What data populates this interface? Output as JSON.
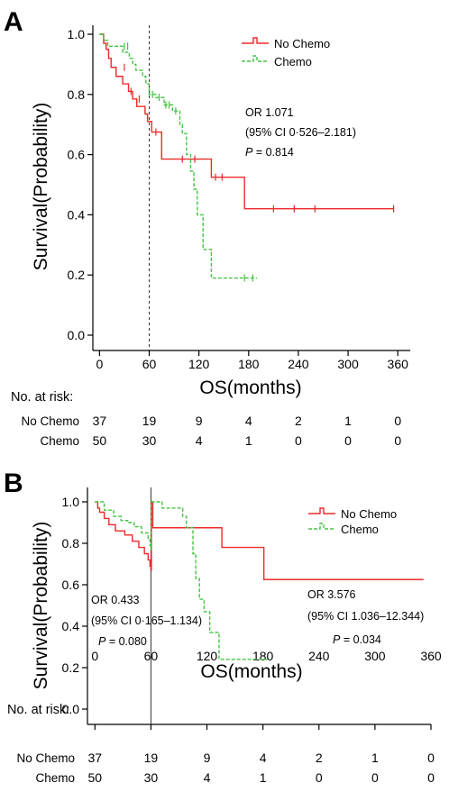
{
  "chart_data": [
    {
      "panel": "A",
      "type": "line",
      "ylabel": "Survival(Probability)",
      "xlabel": "OS(months)",
      "xticks": [
        0,
        60,
        120,
        180,
        240,
        300,
        360
      ],
      "yticks": [
        "0.0",
        "0.2",
        "0.4",
        "0.6",
        "0.8",
        "1.0"
      ],
      "xlim": [
        -8,
        375
      ],
      "ylim": [
        0,
        1
      ],
      "legend_position": "top-right",
      "reference_line_x": 60,
      "series": [
        {
          "name": "No Chemo",
          "color": "#ee2a2a",
          "dash": "solid",
          "steps": [
            [
              0,
              1.0
            ],
            [
              5,
              0.97
            ],
            [
              8,
              0.95
            ],
            [
              11,
              0.92
            ],
            [
              14,
              0.89
            ],
            [
              20,
              0.86
            ],
            [
              28,
              0.835
            ],
            [
              35,
              0.81
            ],
            [
              40,
              0.785
            ],
            [
              45,
              0.76
            ],
            [
              55,
              0.735
            ],
            [
              58,
              0.71
            ],
            [
              63,
              0.675
            ],
            [
              75,
              0.585
            ],
            [
              135,
              0.525
            ],
            [
              175,
              0.42
            ],
            [
              355,
              0.42
            ]
          ],
          "censored": [
            [
              30,
              0.89
            ],
            [
              38,
              0.81
            ],
            [
              48,
              0.785
            ],
            [
              68,
              0.675
            ],
            [
              100,
              0.585
            ],
            [
              115,
              0.585
            ],
            [
              140,
              0.525
            ],
            [
              148,
              0.525
            ],
            [
              210,
              0.42
            ],
            [
              235,
              0.42
            ],
            [
              260,
              0.42
            ],
            [
              355,
              0.42
            ]
          ]
        },
        {
          "name": "Chemo",
          "color": "#44c444",
          "dash": "dashed",
          "steps": [
            [
              0,
              1.0
            ],
            [
              5,
              0.98
            ],
            [
              10,
              0.96
            ],
            [
              20,
              0.96
            ],
            [
              28,
              0.94
            ],
            [
              36,
              0.92
            ],
            [
              40,
              0.9
            ],
            [
              44,
              0.88
            ],
            [
              52,
              0.86
            ],
            [
              56,
              0.835
            ],
            [
              60,
              0.8
            ],
            [
              68,
              0.79
            ],
            [
              78,
              0.765
            ],
            [
              88,
              0.745
            ],
            [
              97,
              0.7
            ],
            [
              100,
              0.67
            ],
            [
              105,
              0.6
            ],
            [
              110,
              0.545
            ],
            [
              114,
              0.485
            ],
            [
              118,
              0.4
            ],
            [
              125,
              0.285
            ],
            [
              135,
              0.19
            ],
            [
              190,
              0.19
            ]
          ],
          "censored": [
            [
              30,
              0.96
            ],
            [
              34,
              0.96
            ],
            [
              64,
              0.8
            ],
            [
              72,
              0.79
            ],
            [
              80,
              0.765
            ],
            [
              84,
              0.765
            ],
            [
              92,
              0.745
            ],
            [
              175,
              0.19
            ],
            [
              185,
              0.19
            ]
          ]
        }
      ],
      "annotations": [
        {
          "label": "OR 1.071"
        },
        {
          "label": "(95% CI 0·526–2.181)"
        },
        {
          "label_italic": "P",
          "label": " = 0.814"
        }
      ],
      "risk_table": {
        "title": "No. at risk:",
        "rows": [
          {
            "name": "No Chemo",
            "values": [
              "37",
              "19",
              "9",
              "4",
              "2",
              "1",
              "0"
            ]
          },
          {
            "name": "Chemo",
            "values": [
              "50",
              "30",
              "4",
              "1",
              "0",
              "0",
              "0"
            ]
          }
        ]
      }
    },
    {
      "panel": "B",
      "type": "line",
      "ylabel": "Survival(Probability)",
      "xlabel": "OS(months)",
      "xticks": [
        0,
        60,
        120,
        180,
        240,
        300,
        360
      ],
      "yticks": [
        "0.0",
        "0.2",
        "0.4",
        "0.6",
        "0.8",
        "1.0"
      ],
      "xlim": [
        -8,
        360
      ],
      "ylim": [
        0,
        1
      ],
      "legend_position": "top-right",
      "reference_line_x": 60,
      "series": [
        {
          "name": "No Chemo",
          "color": "#ee2a2a",
          "dash": "solid",
          "steps": [
            [
              0,
              1.0
            ],
            [
              3,
              0.97
            ],
            [
              5,
              0.95
            ],
            [
              10,
              0.92
            ],
            [
              15,
              0.89
            ],
            [
              22,
              0.86
            ],
            [
              32,
              0.84
            ],
            [
              40,
              0.81
            ],
            [
              47,
              0.78
            ],
            [
              53,
              0.75
            ],
            [
              57,
              0.72
            ],
            [
              59,
              0.69
            ],
            [
              60,
              0.67
            ],
            [
              60.5,
              1.0
            ],
            [
              62,
              0.875
            ],
            [
              136,
              0.78
            ],
            [
              181,
              0.625
            ],
            [
              352,
              0.625
            ]
          ],
          "censored": []
        },
        {
          "name": "Chemo",
          "color": "#44c444",
          "dash": "dashed",
          "steps": [
            [
              0,
              1.0
            ],
            [
              10,
              0.96
            ],
            [
              20,
              0.93
            ],
            [
              28,
              0.91
            ],
            [
              35,
              0.9
            ],
            [
              42,
              0.88
            ],
            [
              50,
              0.85
            ],
            [
              57,
              0.82
            ],
            [
              59,
              0.79
            ],
            [
              60,
              0.77
            ],
            [
              60.5,
              1.0
            ],
            [
              62,
              1.0
            ],
            [
              72,
              0.97
            ],
            [
              94,
              0.93
            ],
            [
              98,
              0.875
            ],
            [
              105,
              0.75
            ],
            [
              108,
              0.63
            ],
            [
              112,
              0.53
            ],
            [
              117,
              0.47
            ],
            [
              123,
              0.37
            ],
            [
              133,
              0.24
            ],
            [
              185,
              0.24
            ]
          ],
          "censored": []
        }
      ],
      "annotations": [
        {
          "label": "OR 0.433"
        },
        {
          "label": "(95% CI 0·165–1.134)"
        },
        {
          "label_italic": "P",
          "label": " = 0.080"
        },
        {
          "label": "OR 3.576"
        },
        {
          "label": "(95% CI 1.036–12.344)"
        },
        {
          "label_italic": "P",
          "label": " = 0.034"
        }
      ],
      "risk_table": {
        "title": "No. at risk:",
        "rows": [
          {
            "name": "No Chemo",
            "values": [
              "37",
              "19",
              "9",
              "4",
              "2",
              "1",
              "0"
            ]
          },
          {
            "name": "Chemo",
            "values": [
              "50",
              "30",
              "4",
              "1",
              "0",
              "0",
              "0"
            ]
          }
        ]
      }
    }
  ]
}
